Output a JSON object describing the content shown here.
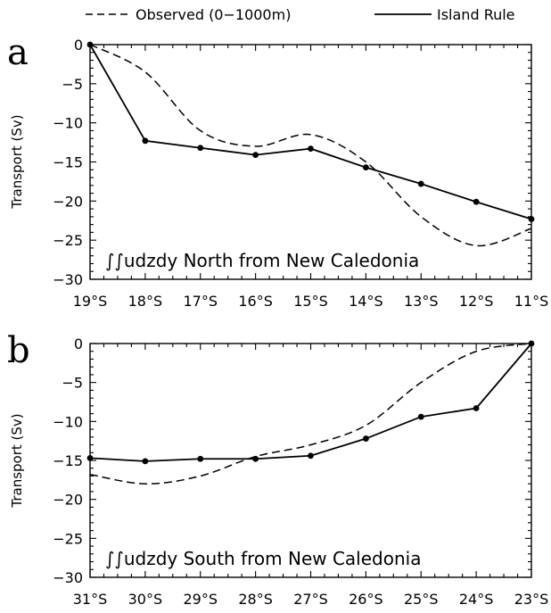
{
  "legend": {
    "observed_label": "Observed (0−1000m)",
    "model_label": "Island Rule"
  },
  "chart_data": [
    {
      "type": "line",
      "panel_label": "a",
      "annotation": "∫∫udzdy North from New Caledonia",
      "ylabel": "Transport (Sv)",
      "xlabel": "",
      "categories": [
        "19°S",
        "18°S",
        "17°S",
        "16°S",
        "15°S",
        "14°S",
        "13°S",
        "12°S",
        "11°S"
      ],
      "ylim": [
        -30,
        0
      ],
      "yticks": [
        0,
        -5,
        -10,
        -15,
        -20,
        -25,
        -30
      ],
      "series": [
        {
          "name": "Observed (0−1000m)",
          "style": "dashed",
          "values": [
            0,
            -3.5,
            -11,
            -13,
            -11.5,
            -15,
            -22,
            -25.7,
            -23.5
          ]
        },
        {
          "name": "Island Rule",
          "style": "solid-markers",
          "values": [
            0,
            -12.3,
            -13.2,
            -14.1,
            -13.3,
            -15.7,
            -17.8,
            -20.1,
            -22.3
          ]
        }
      ]
    },
    {
      "type": "line",
      "panel_label": "b",
      "annotation": "∫∫udzdy South from New Caledonia",
      "ylabel": "Transport (Sv)",
      "xlabel": "",
      "categories": [
        "31°S",
        "30°S",
        "29°S",
        "28°S",
        "27°S",
        "26°S",
        "25°S",
        "24°S",
        "23°S"
      ],
      "ylim": [
        -30,
        0
      ],
      "yticks": [
        0,
        -5,
        -10,
        -15,
        -20,
        -25,
        -30
      ],
      "series": [
        {
          "name": "Observed (0−1000m)",
          "style": "dashed",
          "values": [
            -16.8,
            -18,
            -17,
            -14.5,
            -13,
            -10.5,
            -5,
            -1,
            0
          ]
        },
        {
          "name": "Island Rule",
          "style": "solid-markers",
          "values": [
            -14.7,
            -15.1,
            -14.8,
            -14.8,
            -14.4,
            -12.2,
            -9.4,
            -8.3,
            0
          ]
        }
      ]
    }
  ]
}
